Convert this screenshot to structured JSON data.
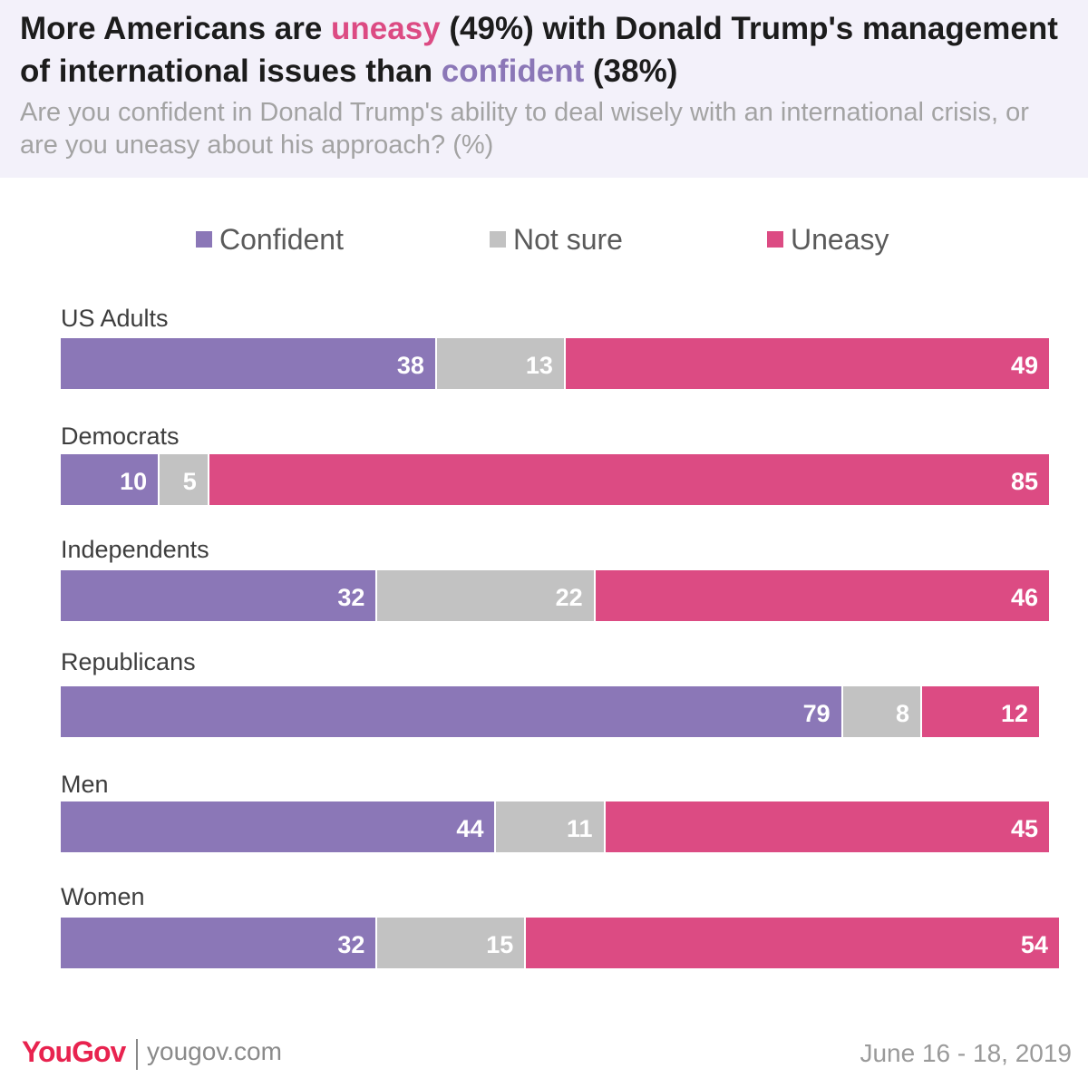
{
  "header": {
    "title_parts": [
      {
        "text": "More Americans are ",
        "style": "normal"
      },
      {
        "text": "uneasy",
        "style": "pink"
      },
      {
        "text": " (49%) with Donald Trump's management of international issues than ",
        "style": "normal"
      },
      {
        "text": "confident",
        "style": "purple"
      },
      {
        "text": " (38%)",
        "style": "normal"
      }
    ],
    "subtitle": "Are you confident in Donald Trump's ability to deal wisely with an international crisis, or are you uneasy about his approach? (%)"
  },
  "colors": {
    "confident": "#8b77b7",
    "not_sure": "#c2c2c2",
    "uneasy": "#dc4b83",
    "header_bg": "#f3f1fa"
  },
  "legend": [
    {
      "label": "Confident",
      "color": "#8b77b7"
    },
    {
      "label": "Not sure",
      "color": "#c2c2c2"
    },
    {
      "label": "Uneasy",
      "color": "#dc4b83"
    }
  ],
  "chart_data": {
    "type": "bar",
    "orientation": "horizontal",
    "stacked": true,
    "categories": [
      "US Adults",
      "Democrats",
      "Independents",
      "Republicans",
      "Men",
      "Women"
    ],
    "series": [
      {
        "name": "Confident",
        "values": [
          38,
          10,
          32,
          79,
          44,
          32
        ]
      },
      {
        "name": "Not sure",
        "values": [
          13,
          5,
          22,
          8,
          11,
          15
        ]
      },
      {
        "name": "Uneasy",
        "values": [
          49,
          85,
          46,
          12,
          45,
          54
        ]
      }
    ],
    "xlim": [
      0,
      100
    ],
    "grid": false,
    "legend_position": "top"
  },
  "footer": {
    "logo": "YouGov",
    "url": "yougov.com",
    "date": "June 16 - 18, 2019"
  }
}
